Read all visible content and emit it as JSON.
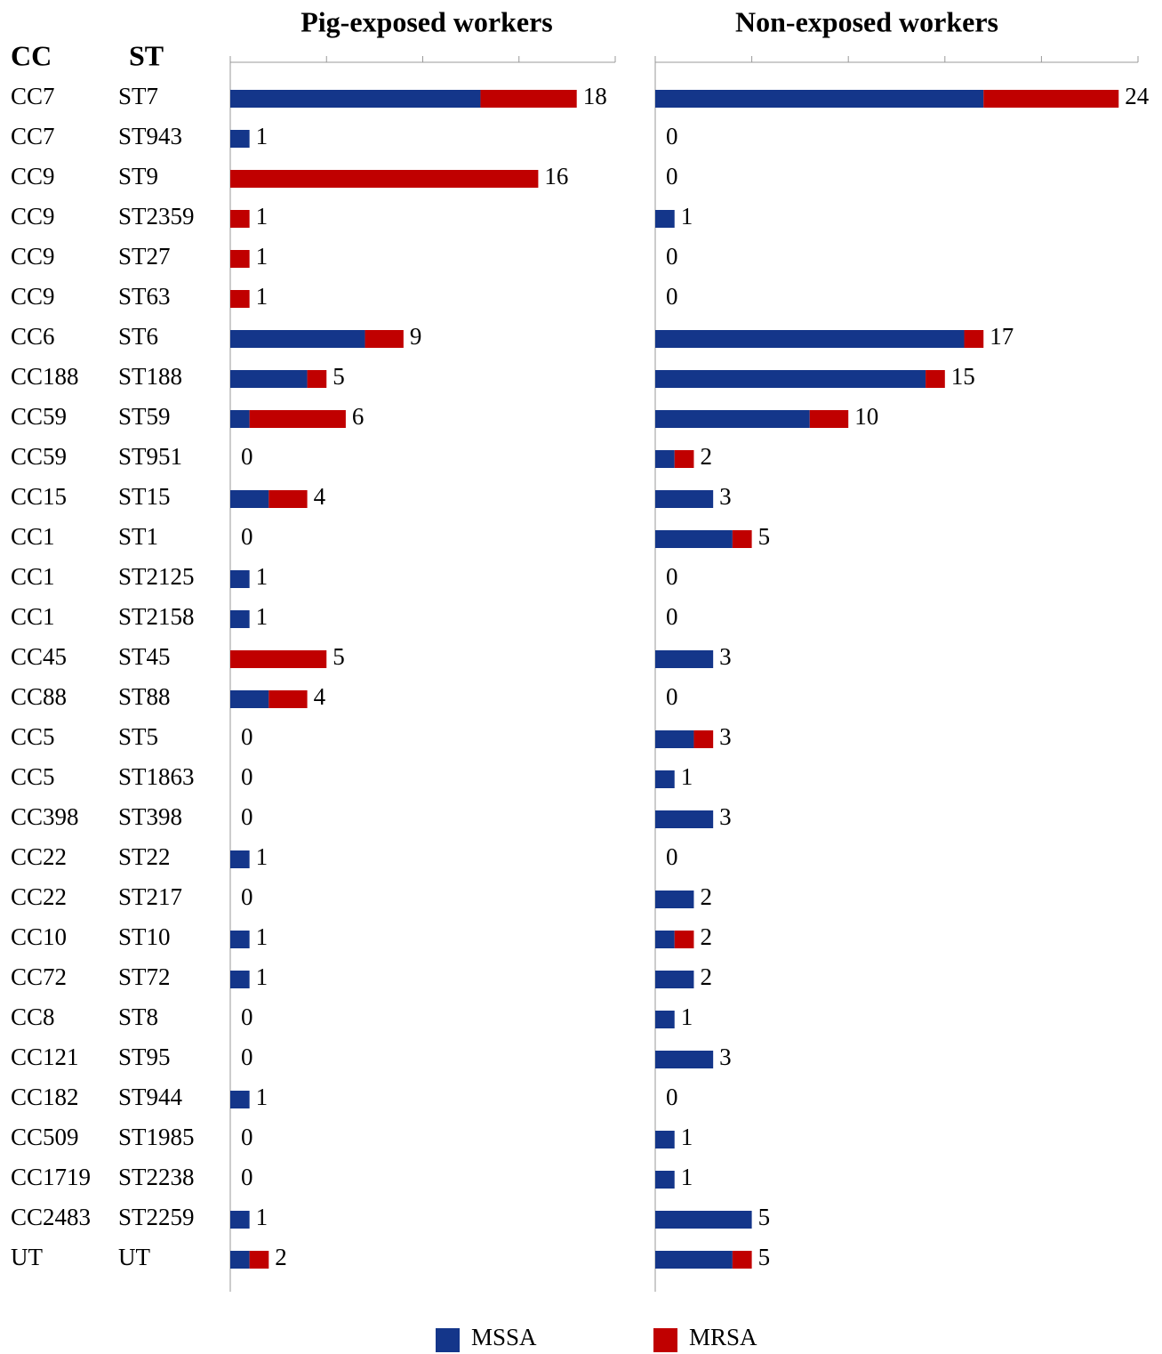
{
  "rows": {
    "headers": [
      "CC",
      "ST"
    ],
    "cc": [
      "CC7",
      "CC7",
      "CC9",
      "CC9",
      "CC9",
      "CC9",
      "CC6",
      "CC188",
      "CC59",
      "CC59",
      "CC15",
      "CC1",
      "CC1",
      "CC1",
      "CC45",
      "CC88",
      "CC5",
      "CC5",
      "CC398",
      "CC22",
      "CC22",
      "CC10",
      "CC72",
      "CC8",
      "CC121",
      "CC182",
      "CC509",
      "CC1719",
      "CC2483",
      "UT"
    ],
    "st": [
      "ST7",
      "ST943",
      "ST9",
      "ST2359",
      "ST27",
      "ST63",
      "ST6",
      "ST188",
      "ST59",
      "ST951",
      "ST15",
      "ST1",
      "ST2125",
      "ST2158",
      "ST45",
      "ST88",
      "ST5",
      "ST1863",
      "ST398",
      "ST22",
      "ST217",
      "ST10",
      "ST72",
      "ST8",
      "ST95",
      "ST944",
      "ST1985",
      "ST2238",
      "ST2259",
      "UT"
    ]
  },
  "chart_data": [
    {
      "type": "bar",
      "title": "Pig-exposed workers",
      "stacked": true,
      "orientation": "horizontal",
      "xlim": [
        0,
        20
      ],
      "xticks": [
        0,
        5,
        10,
        15,
        20
      ],
      "series": [
        {
          "name": "MSSA",
          "color": "#14368a",
          "values": [
            13,
            1,
            0,
            0,
            0,
            0,
            7,
            4,
            1,
            0,
            2,
            0,
            1,
            1,
            0,
            2,
            0,
            0,
            0,
            1,
            0,
            1,
            1,
            0,
            0,
            1,
            0,
            0,
            1,
            1
          ]
        },
        {
          "name": "MRSA",
          "color": "#c00000",
          "values": [
            5,
            0,
            16,
            1,
            1,
            1,
            2,
            1,
            5,
            0,
            2,
            0,
            0,
            0,
            5,
            2,
            0,
            0,
            0,
            0,
            0,
            0,
            0,
            0,
            0,
            0,
            0,
            0,
            0,
            1
          ]
        }
      ],
      "totals": [
        18,
        1,
        16,
        1,
        1,
        1,
        9,
        5,
        6,
        0,
        4,
        0,
        1,
        1,
        5,
        4,
        0,
        0,
        0,
        1,
        0,
        1,
        1,
        0,
        0,
        1,
        0,
        0,
        1,
        2
      ]
    },
    {
      "type": "bar",
      "title": "Non-exposed workers",
      "stacked": true,
      "orientation": "horizontal",
      "xlim": [
        0,
        25
      ],
      "xticks": [
        0,
        5,
        10,
        15,
        20,
        25
      ],
      "series": [
        {
          "color": "#14368a",
          "values": [
            17,
            0,
            0,
            1,
            0,
            0,
            16,
            14,
            8,
            1,
            3,
            4,
            0,
            0,
            3,
            0,
            2,
            1,
            3,
            0,
            2,
            1,
            2,
            1,
            3,
            0,
            1,
            1,
            5,
            4
          ]
        },
        {
          "color": "#c00000",
          "values": [
            7,
            0,
            0,
            0,
            0,
            0,
            1,
            1,
            2,
            1,
            0,
            1,
            0,
            0,
            0,
            0,
            1,
            0,
            0,
            0,
            0,
            1,
            0,
            0,
            0,
            0,
            0,
            0,
            0,
            1
          ]
        }
      ],
      "totals": [
        24,
        0,
        0,
        1,
        0,
        0,
        17,
        15,
        10,
        2,
        3,
        5,
        0,
        0,
        3,
        0,
        3,
        1,
        3,
        0,
        2,
        2,
        2,
        1,
        3,
        0,
        1,
        1,
        5,
        5
      ]
    }
  ]
}
